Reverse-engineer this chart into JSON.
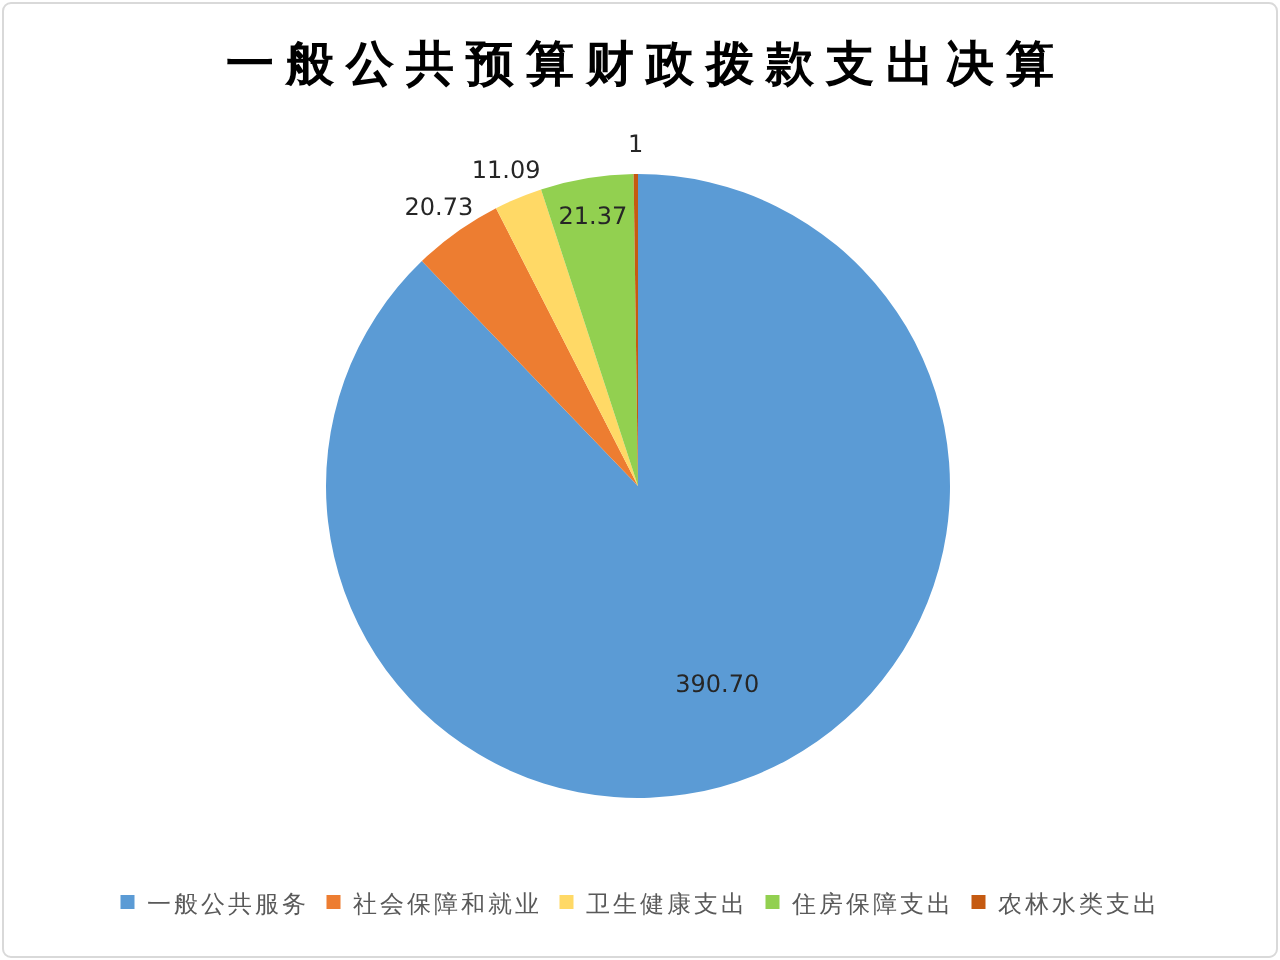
{
  "chart_data": {
    "type": "pie",
    "title": "一般公共预算财政拨款支出决算",
    "categories": [
      "一般公共服务",
      "社会保障和就业",
      "卫生健康支出",
      "住房保障支出",
      "农林水类支出"
    ],
    "values": [
      390.7,
      20.73,
      11.09,
      21.37,
      1
    ],
    "colors": [
      "#5b9bd5",
      "#ed7d31",
      "#ffd966",
      "#92d050",
      "#c55a11"
    ],
    "value_labels": [
      "390.70",
      "20.73",
      "11.09",
      "21.37",
      "1"
    ],
    "legend": "bottom"
  }
}
